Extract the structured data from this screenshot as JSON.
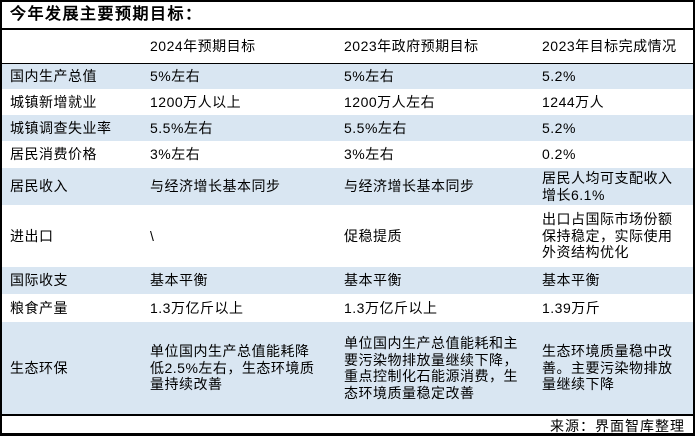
{
  "page": {
    "title": "今年发展主要预期目标：",
    "source": "来源：界面智库整理"
  },
  "colors": {
    "stripe_blue": "#d9e6f2",
    "border_black": "#000000",
    "background": "#ffffff",
    "text": "#000000"
  },
  "chart_data": {
    "type": "table",
    "title": "今年发展主要预期目标：",
    "source": "来源：界面智库整理",
    "columns": [
      "",
      "2024年预期目标",
      "2023年政府预期目标",
      "2023年目标完成情况"
    ],
    "rows": [
      [
        "国内生产总值",
        "5%左右",
        "5%左右",
        "5.2%"
      ],
      [
        "城镇新增就业",
        "1200万人以上",
        "1200万人左右",
        "1244万人"
      ],
      [
        "城镇调查失业率",
        "5.5%左右",
        "5.5%左右",
        "5.2%"
      ],
      [
        "居民消费价格",
        "3%左右",
        "3%左右",
        "0.2%"
      ],
      [
        "居民收入",
        "与经济增长基本同步",
        "与经济增长基本同步",
        "居民人均可支配收入\n增长6.1%"
      ],
      [
        "进出口",
        "\\",
        "促稳提质",
        "出口占国际市场份额\n保持稳定，实际使用\n外资结构优化"
      ],
      [
        "国际收支",
        "基本平衡",
        "基本平衡",
        "基本平衡"
      ],
      [
        "粮食产量",
        "1.3万亿斤以上",
        "1.3万亿斤以上",
        "1.39万斤"
      ],
      [
        "生态环保",
        "单位国内生产总值能耗降\n低2.5%左右，生态环境质\n量持续改善",
        "单位国内生产总值能耗和主\n要污染物排放量继续下降，\n重点控制化石能源消费，生\n态环境质量稳定改善",
        "生态环境质量稳中改\n善。主要污染物排放\n量继续下降"
      ]
    ]
  }
}
